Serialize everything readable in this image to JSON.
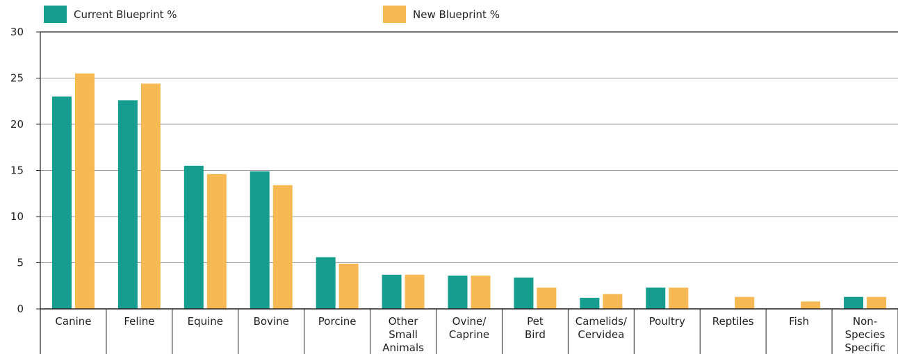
{
  "chart_data": {
    "type": "bar",
    "title": "",
    "xlabel": "",
    "ylabel": "",
    "ylim": [
      0,
      30
    ],
    "yticks": [
      0,
      5,
      10,
      15,
      20,
      25,
      30
    ],
    "grid": true,
    "legend_position": "top",
    "categories": [
      [
        "Canine"
      ],
      [
        "Feline"
      ],
      [
        "Equine"
      ],
      [
        "Bovine"
      ],
      [
        "Porcine"
      ],
      [
        "Other",
        "Small",
        "Animals"
      ],
      [
        "Ovine/",
        "Caprine"
      ],
      [
        "Pet",
        "Bird"
      ],
      [
        "Camelids/",
        "Cervidea"
      ],
      [
        "Poultry"
      ],
      [
        "Reptiles"
      ],
      [
        "Fish"
      ],
      [
        "Non-",
        "Species",
        "Specific"
      ]
    ],
    "series": [
      {
        "name": "Current Blueprint %",
        "color": "#159e8f",
        "values": [
          23,
          22.6,
          15.5,
          14.9,
          5.6,
          3.7,
          3.6,
          3.4,
          1.2,
          2.3,
          0,
          0,
          1.3
        ]
      },
      {
        "name": "New Blueprint %",
        "color": "#f6b953",
        "values": [
          25.5,
          24.4,
          14.6,
          13.4,
          4.9,
          3.7,
          3.6,
          2.3,
          1.6,
          2.3,
          1.3,
          0.8,
          1.3
        ]
      }
    ]
  }
}
